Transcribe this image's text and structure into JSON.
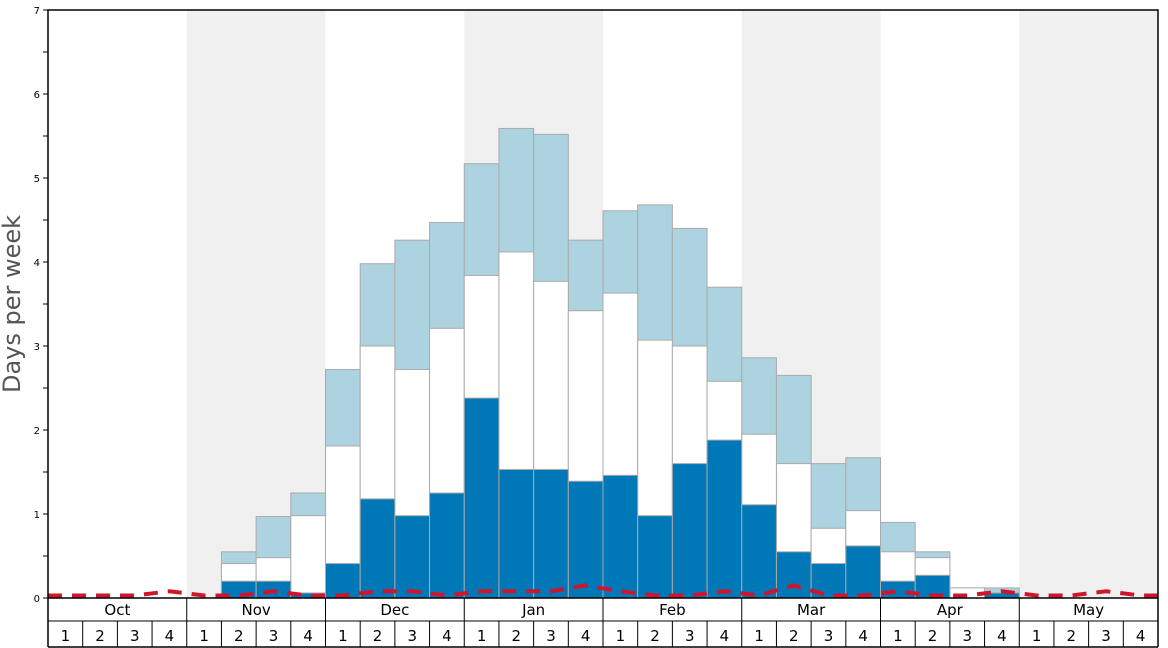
{
  "chart_data": {
    "type": "bar",
    "ylabel": "Days per week",
    "ylim": [
      0,
      7
    ],
    "y_ticks": [
      "0",
      "1",
      "2",
      "3",
      "4",
      "5",
      "6",
      "7"
    ],
    "months": [
      "Oct",
      "Nov",
      "Dec",
      "Jan",
      "Feb",
      "Mar",
      "Apr",
      "May"
    ],
    "week_labels": [
      "1",
      "2",
      "3",
      "4"
    ],
    "shaded_months": [
      "Nov",
      "Jan",
      "Mar",
      "May"
    ],
    "colors": {
      "series_dark": "#0077b6",
      "series_white": "#ffffff",
      "series_light": "#add3e0",
      "bar_stroke": "#aaaaaa",
      "shade": "#f0f0f0",
      "dashed_line": "#d0142c"
    },
    "series": [
      {
        "values": [
          0,
          0,
          0,
          0,
          0,
          0.2,
          0.2,
          0.06,
          0.41,
          1.18,
          0.98,
          1.25,
          2.38,
          1.53,
          1.53,
          1.39,
          1.46,
          0.98,
          1.6,
          1.88,
          1.11,
          0.55,
          0.41,
          0.62,
          0.2,
          0.27,
          0,
          0.06,
          0,
          0,
          0,
          0
        ]
      },
      {
        "values": [
          0,
          0,
          0,
          0,
          0,
          0.41,
          0.48,
          0.98,
          1.81,
          3.0,
          2.72,
          3.21,
          3.84,
          4.12,
          3.77,
          3.42,
          3.63,
          3.07,
          3.0,
          2.58,
          1.95,
          1.6,
          0.83,
          1.04,
          0.55,
          0.48,
          0.12,
          0.06,
          0,
          0,
          0,
          0
        ]
      },
      {
        "values": [
          0,
          0,
          0,
          0,
          0,
          0.55,
          0.97,
          1.25,
          2.72,
          3.98,
          4.26,
          4.47,
          5.17,
          5.59,
          5.52,
          4.26,
          4.61,
          4.68,
          4.4,
          3.7,
          2.86,
          2.65,
          1.6,
          1.67,
          0.9,
          0.55,
          0.12,
          0.12,
          0,
          0,
          0,
          0
        ]
      },
      {
        "type": "line",
        "values": [
          0.03,
          0.03,
          0.03,
          0.08,
          0.03,
          0.03,
          0.08,
          0.03,
          0.03,
          0.08,
          0.08,
          0.03,
          0.08,
          0.08,
          0.08,
          0.15,
          0.08,
          0.03,
          0.03,
          0.08,
          0.03,
          0.15,
          0.03,
          0.03,
          0.08,
          0.03,
          0.03,
          0.08,
          0.03,
          0.03,
          0.08,
          0.03
        ]
      }
    ]
  }
}
